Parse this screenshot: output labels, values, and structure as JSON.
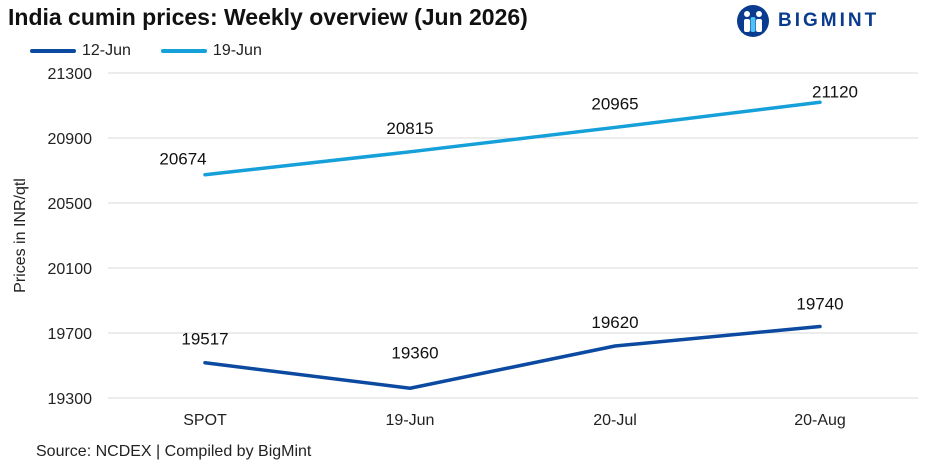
{
  "header": {
    "title": "India cumin prices: Weekly overview (Jun 2026)",
    "brand": "BIGMINT"
  },
  "footer": {
    "source": "Source: NCDEX | Compiled by BigMint"
  },
  "colors": {
    "series_12jun": "#0b4aa0",
    "series_19jun": "#16a0da",
    "grid": "#d9d9d9",
    "brand": "#0b3b8f"
  },
  "chart_data": {
    "type": "line",
    "title": "India cumin prices: Weekly overview (Jun 2026)",
    "xlabel": "",
    "ylabel": "Prices in INR/qtl",
    "categories": [
      "SPOT",
      "19-Jun",
      "20-Jul",
      "20-Aug"
    ],
    "ylim": [
      19300,
      21300
    ],
    "yticks": [
      19300,
      19700,
      20100,
      20500,
      20900,
      21300
    ],
    "grid": true,
    "legend": "top-left",
    "series": [
      {
        "name": "12-Jun",
        "values": [
          19517,
          19360,
          19620,
          19740
        ],
        "data_labels": [
          "19517",
          "19360",
          "19620",
          "19740"
        ]
      },
      {
        "name": "19-Jun",
        "values": [
          20674,
          20815,
          20965,
          21120
        ],
        "data_labels": [
          "20674",
          "20815",
          "20965",
          "21120"
        ]
      }
    ]
  }
}
